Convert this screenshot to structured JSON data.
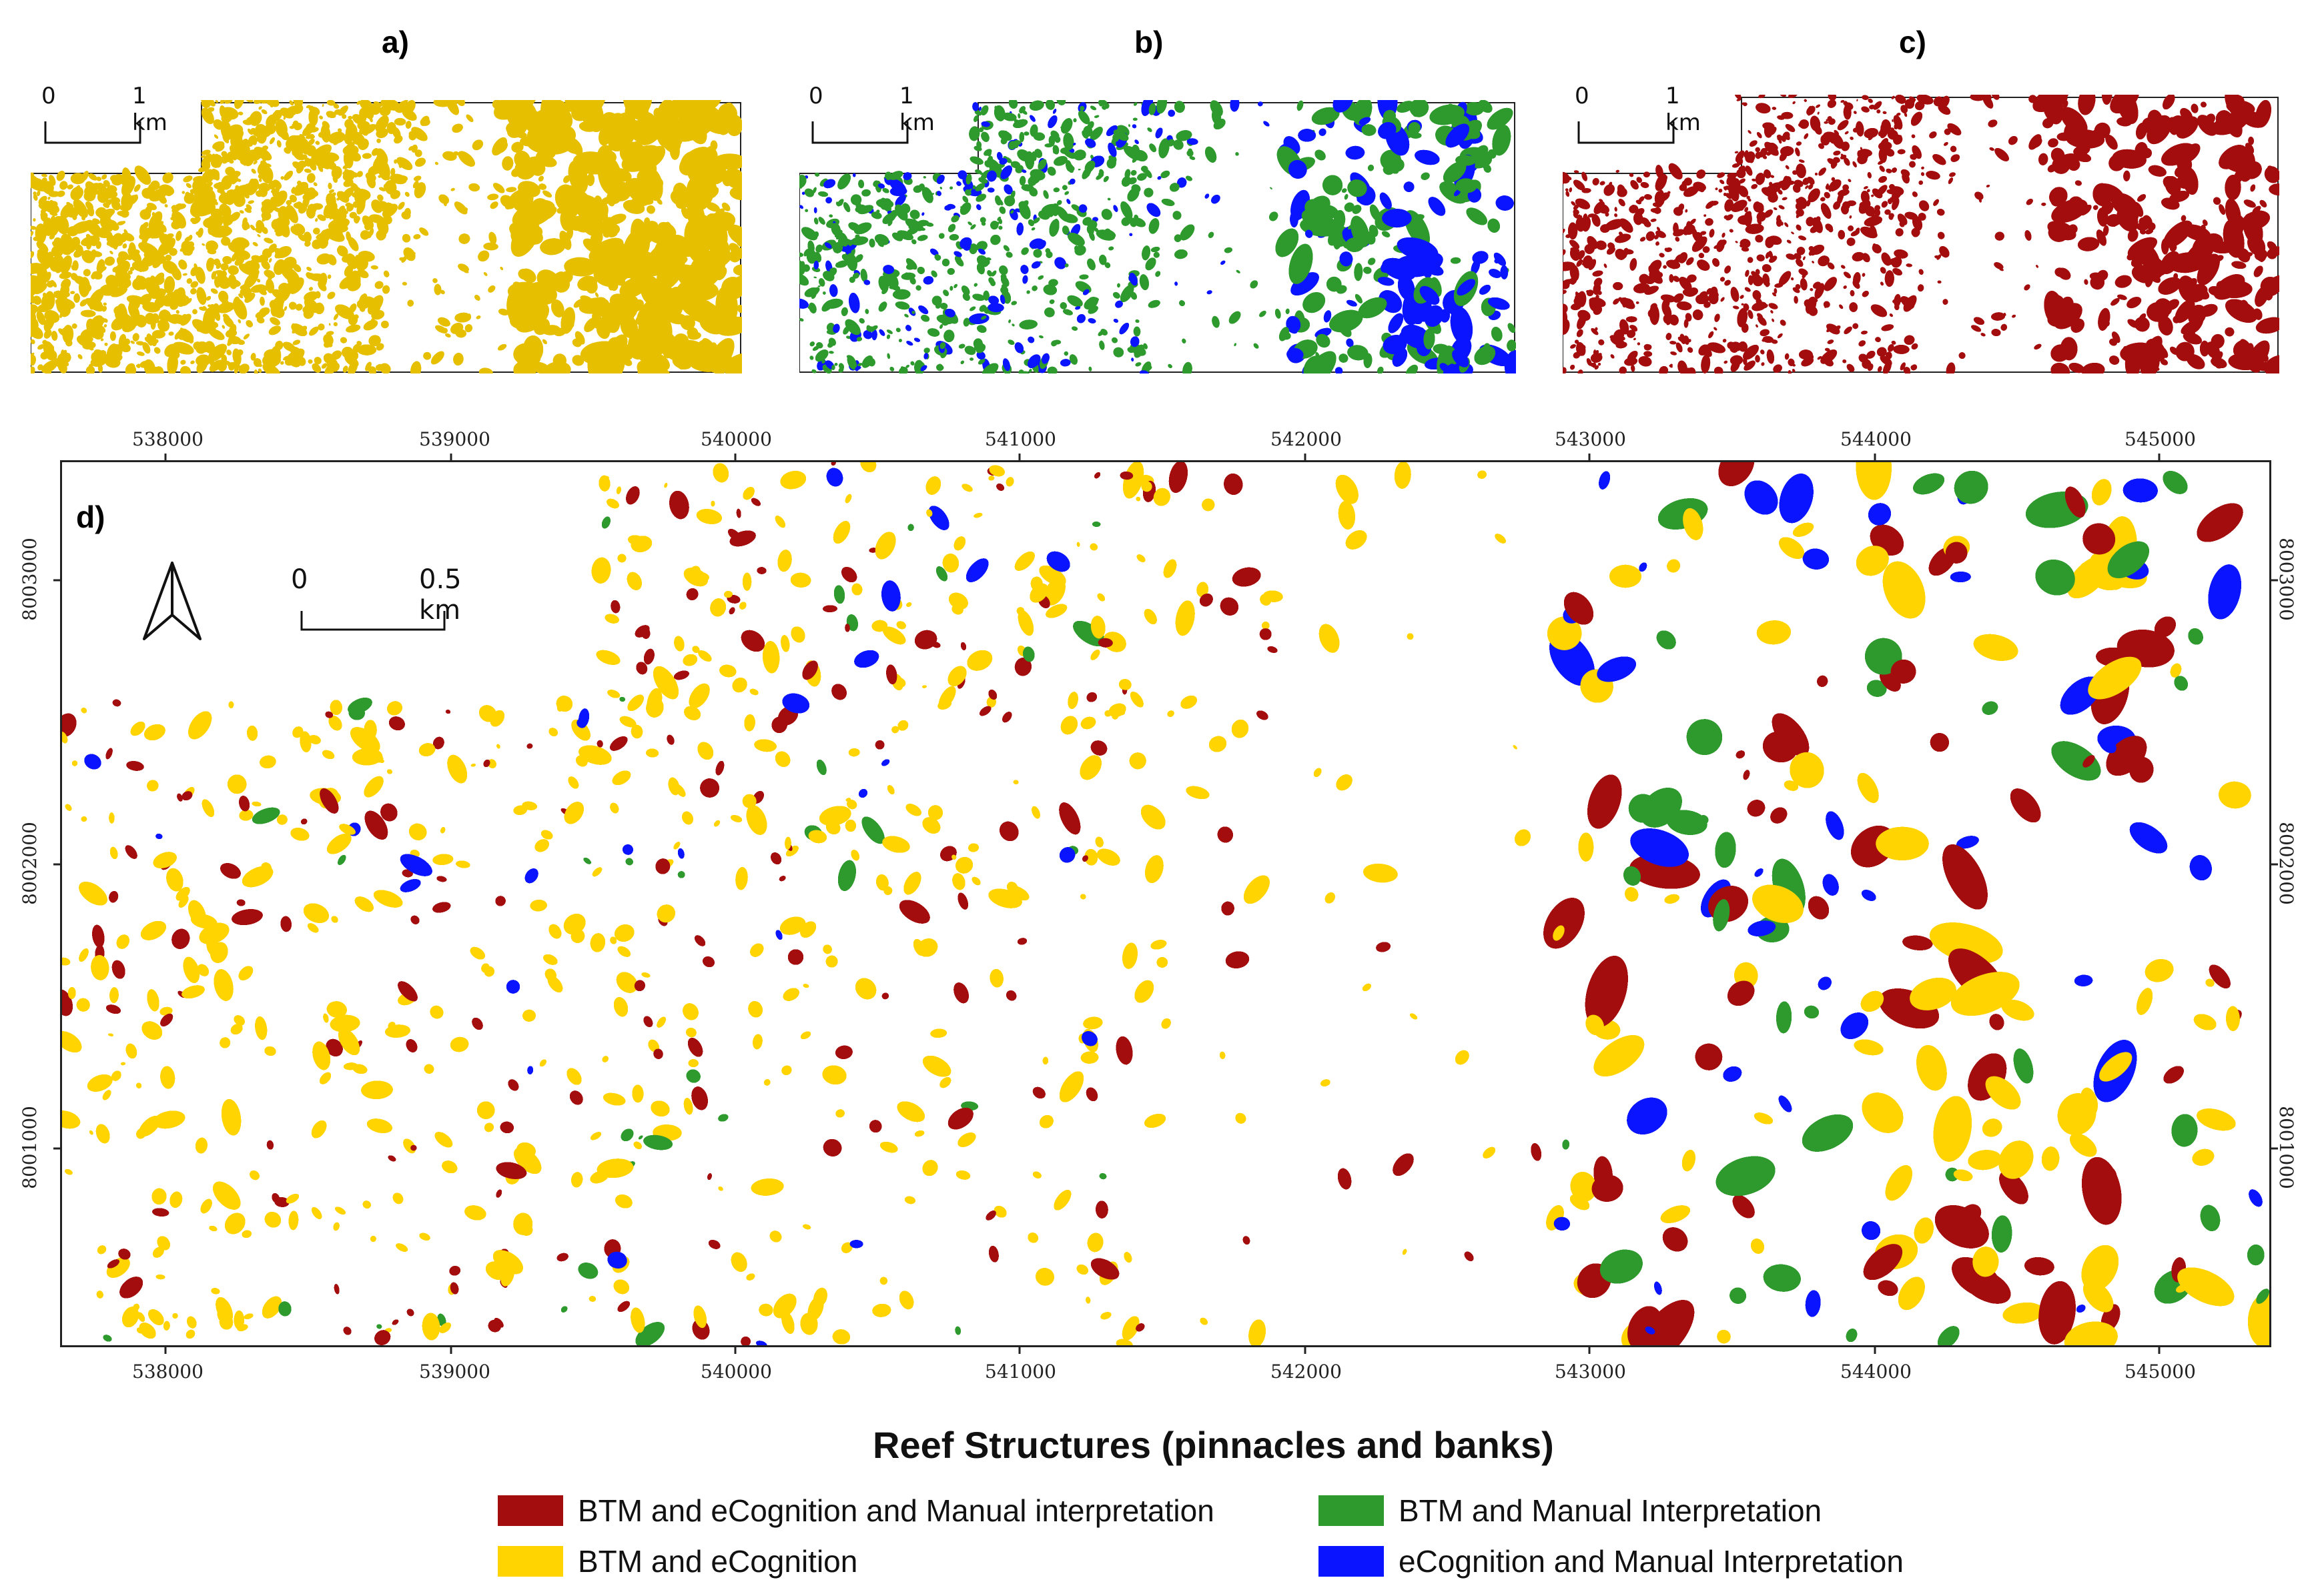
{
  "panels": {
    "a": {
      "label": "a)",
      "scale_start": "0",
      "scale_end": "1 km"
    },
    "b": {
      "label": "b)",
      "scale_start": "0",
      "scale_end": "1 km"
    },
    "c": {
      "label": "c)",
      "scale_start": "0",
      "scale_end": "1 km"
    },
    "d": {
      "label": "d)",
      "scale_start": "0",
      "scale_end": "0.5 km"
    }
  },
  "axes": {
    "x_ticks": [
      "538000",
      "539000",
      "540000",
      "541000",
      "542000",
      "543000",
      "544000",
      "545000"
    ],
    "y_ticks": [
      "8003000",
      "8002000",
      "8001000"
    ]
  },
  "legend": {
    "title": "Reef Structures (pinnacles and banks)",
    "items": [
      {
        "label": "BTM and eCognition and Manual interpretation",
        "color": "#a40d0d"
      },
      {
        "label": "BTM and Manual Interpretation",
        "color": "#2e9a2e"
      },
      {
        "label": "BTM and eCognition",
        "color": "#ffd400"
      },
      {
        "label": "eCognition and Manual Interpretation",
        "color": "#0a14ff"
      }
    ]
  },
  "colors": {
    "red": "#a40d0d",
    "yellow": "#ffd400",
    "green": "#2e9a2e",
    "blue": "#0a14ff",
    "a_fill": "#e6c000",
    "c_fill": "#a40d0d"
  }
}
